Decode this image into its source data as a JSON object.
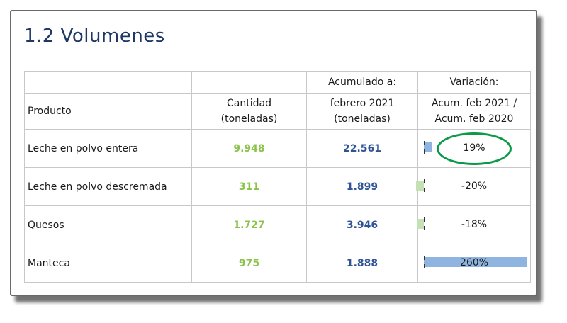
{
  "title": "1.2  Volumenes",
  "headers": {
    "producto": "Producto",
    "cantidad_l1": "Cantidad",
    "cantidad_l2": "(toneladas)",
    "acumulado_top": "Acumulado a:",
    "acumulado_l1": "febrero 2021",
    "acumulado_l2": "(toneladas)",
    "variacion_top": "Variación:",
    "variacion_l1": "Acum. feb 2021 /",
    "variacion_l2": "Acum. feb 2020"
  },
  "rows": [
    {
      "producto": "Leche en polvo entera",
      "cantidad": "9.948",
      "acumulado": "22.561",
      "variacion": "19%",
      "variacion_value": 19,
      "highlighted": true
    },
    {
      "producto": "Leche en polvo descremada",
      "cantidad": "311",
      "acumulado": "1.899",
      "variacion": "-20%",
      "variacion_value": -20
    },
    {
      "producto": "Quesos",
      "cantidad": "1.727",
      "acumulado": "3.946",
      "variacion": "-18%",
      "variacion_value": -18
    },
    {
      "producto": "Manteca",
      "cantidad": "975",
      "acumulado": "1.888",
      "variacion": "260%",
      "variacion_value": 260
    }
  ],
  "colors": {
    "title": "#1f3864",
    "cantidad": "#8bc34a",
    "acumulado": "#2f5496",
    "bar_positive": "#8fb4e0",
    "bar_negative": "#c5e0b4",
    "highlight_circle": "#0a9a48"
  }
}
